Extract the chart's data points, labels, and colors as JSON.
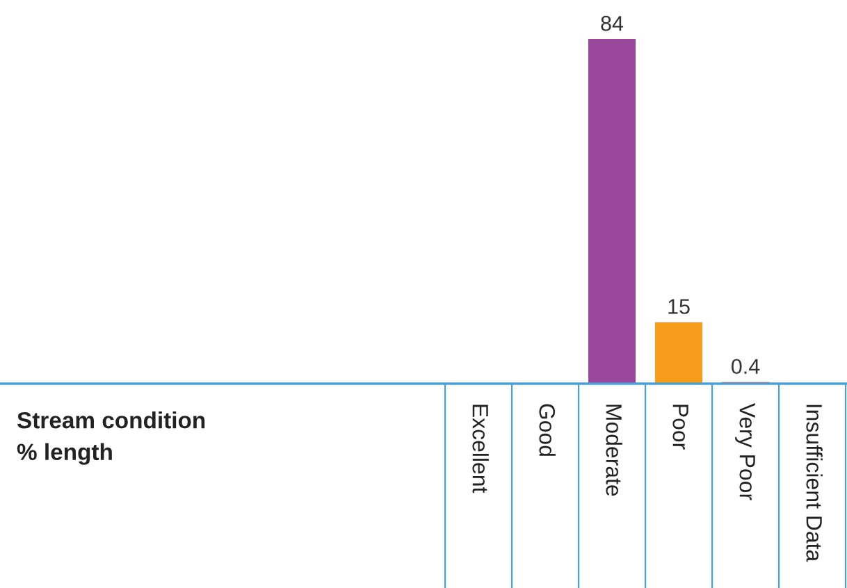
{
  "chart_data": {
    "type": "bar",
    "categories": [
      "Excellent",
      "Good",
      "Moderate",
      "Poor",
      "Very Poor",
      "Insufficient Data"
    ],
    "values": [
      null,
      null,
      84,
      15,
      0.4,
      null
    ],
    "colors": [
      null,
      null,
      "#99479b",
      "#f89c1c",
      "#e8343f",
      null
    ],
    "value_labels": [
      null,
      null,
      "84",
      "15",
      "0.4",
      null
    ],
    "annotations": [
      "Stream condition\n% length"
    ],
    "grid": false,
    "legend": false
  }
}
